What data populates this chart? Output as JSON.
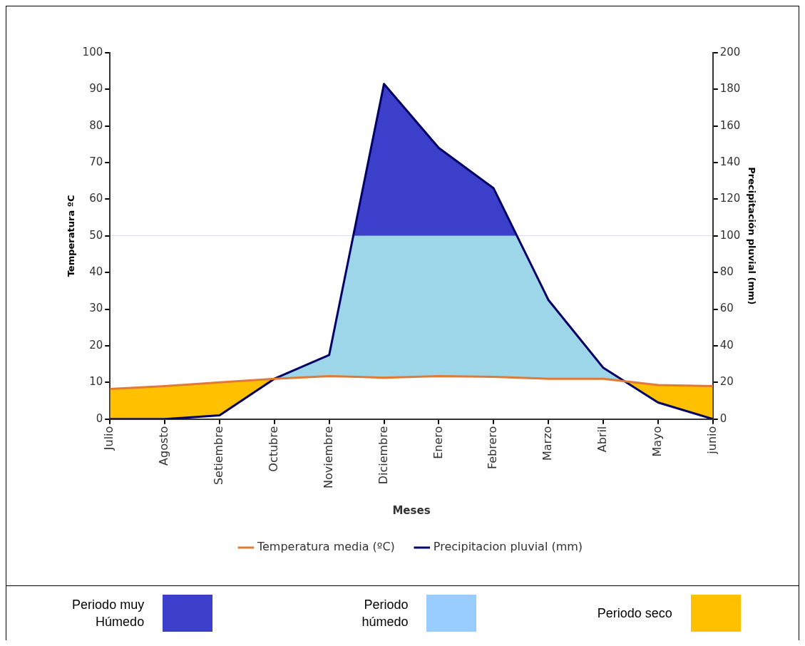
{
  "chart_data": {
    "type": "line",
    "xlabel": "Meses",
    "ylabel": "Temperatura ºC",
    "y2label": "Precipitación pluvial (mm)",
    "categories": [
      "Julio",
      "Agosto",
      "Setiembre",
      "Octubre",
      "Noviembre",
      "Diciembre",
      "Enero",
      "Febrero",
      "Marzo",
      "Abril",
      "Mayo",
      "junio"
    ],
    "series": [
      {
        "name": "Temperatura media (ºC)",
        "color": "#e07a35",
        "values": [
          8.2,
          9,
          10,
          11,
          11.7,
          11.3,
          11.7,
          11.5,
          11,
          11,
          9.3,
          9
        ]
      },
      {
        "name": "Precipitacion pluvial (mm)",
        "color": "#000066",
        "axis": "y2",
        "values": [
          0,
          0,
          2,
          22,
          35,
          183,
          148,
          126,
          65,
          28,
          9,
          0
        ]
      }
    ],
    "ylim": [
      0,
      100
    ],
    "yticks": [
      0,
      10,
      20,
      30,
      40,
      50,
      60,
      70,
      80,
      90,
      100
    ],
    "y2lim": [
      0,
      200
    ],
    "y2ticks": [
      0,
      20,
      40,
      60,
      80,
      100,
      120,
      140,
      160,
      180,
      200
    ],
    "grid": false,
    "legend": "bottom",
    "marker": "none",
    "annotations": [
      "Periodo muy Húmedo",
      "Periodo húmedo",
      "Periodo seco"
    ]
  }
}
